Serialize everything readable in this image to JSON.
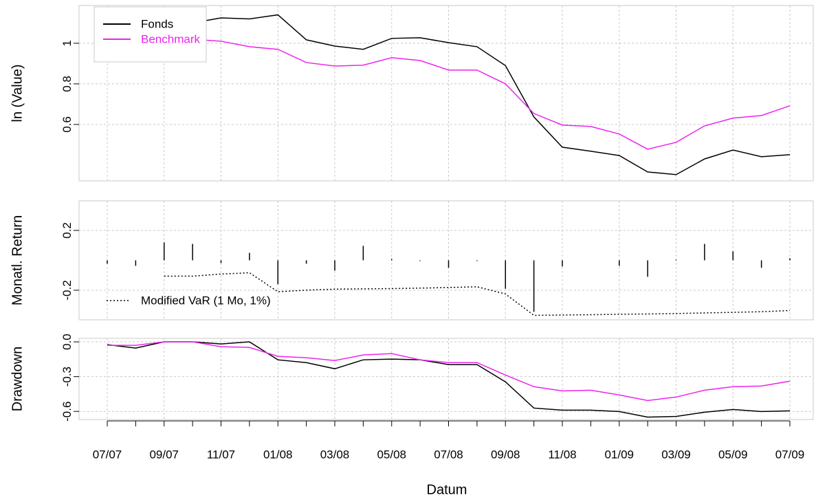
{
  "chart_data": [
    {
      "type": "line",
      "ylabel": "ln (Value)",
      "ylim": [
        0.322,
        1.186
      ],
      "yticks": [
        0.6,
        0.8,
        1.0
      ],
      "grid": true,
      "legend": "top-left",
      "series": [
        {
          "name": "Fonds",
          "color": "#000000",
          "values": [
            1.05,
            1.06,
            1.1,
            1.1,
            1.125,
            1.12,
            1.14,
            1.017,
            0.986,
            0.97,
            1.024,
            1.027,
            1.003,
            0.983,
            0.89,
            0.637,
            0.488,
            0.468,
            0.447,
            0.366,
            0.353,
            0.43,
            0.474,
            0.441,
            0.451
          ]
        },
        {
          "name": "Benchmark",
          "color": "#ee22ee",
          "values": [
            1.02,
            1.02,
            1.02,
            1.02,
            1.01,
            0.983,
            0.97,
            0.905,
            0.888,
            0.892,
            0.929,
            0.915,
            0.868,
            0.868,
            0.8,
            0.654,
            0.597,
            0.59,
            0.553,
            0.478,
            0.512,
            0.593,
            0.631,
            0.644,
            0.692
          ]
        }
      ]
    },
    {
      "type": "bar",
      "ylabel": "Monatl. Return",
      "ylim": [
        -0.398,
        0.398
      ],
      "yticks": [
        -0.2,
        0.2
      ],
      "grid": true,
      "color": "#000000",
      "legend": "bottom-left",
      "values": [
        -0.023,
        -0.037,
        0.12,
        0.11,
        -0.018,
        0.05,
        -0.16,
        -0.023,
        -0.069,
        0.097,
        0.009,
        -0.005,
        -0.05,
        -0.005,
        -0.19,
        -0.345,
        -0.041,
        0,
        -0.037,
        -0.11,
        0.005,
        0.11,
        0.06,
        -0.05,
        0.014
      ],
      "lines": [
        {
          "name": "Modified VaR (1 Mo, 1%)",
          "color": "#000000",
          "style": "dotted",
          "values": [
            null,
            null,
            -0.106,
            -0.106,
            -0.092,
            -0.083,
            -0.21,
            -0.2,
            -0.193,
            -0.191,
            -0.189,
            -0.186,
            -0.182,
            -0.177,
            -0.225,
            -0.368,
            -0.366,
            -0.364,
            -0.361,
            -0.359,
            -0.356,
            -0.352,
            -0.348,
            -0.344,
            -0.336
          ]
        }
      ]
    },
    {
      "type": "line",
      "ylabel": "Drawdown",
      "xlabel": "Datum",
      "ylim": [
        -0.67,
        0.03
      ],
      "yticks": [
        {
          "value": 0,
          "label": "0.0"
        },
        -0.3,
        -0.6
      ],
      "grid": true,
      "categories": [
        "07/07",
        null,
        "09/07",
        null,
        "11/07",
        null,
        "01/08",
        null,
        "03/08",
        null,
        "05/08",
        null,
        "07/08",
        null,
        "09/08",
        null,
        "11/08",
        null,
        "01/09",
        null,
        "03/09",
        null,
        "05/09",
        null,
        "07/09"
      ],
      "series": [
        {
          "name": "Fonds",
          "color": "#000000",
          "values": [
            -0.024,
            -0.054,
            0,
            0,
            -0.018,
            0,
            -0.155,
            -0.179,
            -0.232,
            -0.155,
            -0.149,
            -0.155,
            -0.196,
            -0.196,
            -0.345,
            -0.571,
            -0.589,
            -0.589,
            -0.601,
            -0.649,
            -0.643,
            -0.607,
            -0.583,
            -0.601,
            -0.595
          ]
        },
        {
          "name": "Benchmark",
          "color": "#ee22ee",
          "values": [
            -0.03,
            -0.03,
            0,
            0,
            -0.042,
            -0.048,
            -0.125,
            -0.137,
            -0.161,
            -0.113,
            -0.101,
            -0.155,
            -0.179,
            -0.179,
            -0.286,
            -0.387,
            -0.423,
            -0.417,
            -0.458,
            -0.506,
            -0.476,
            -0.417,
            -0.387,
            -0.381,
            -0.339
          ]
        }
      ]
    }
  ]
}
